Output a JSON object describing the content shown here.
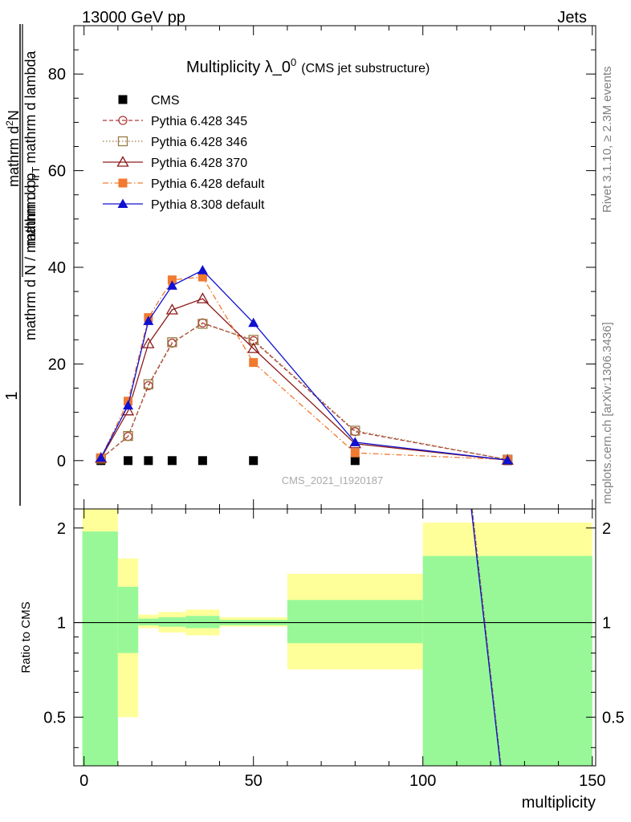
{
  "header": {
    "energy_label": "13000 GeV pp",
    "process_label": "Jets"
  },
  "side_labels": {
    "rivet": "Rivet 3.1.10, ≥ 2.3M events",
    "mcplots": "mcplots.cern.ch [arXiv:1306.3436]"
  },
  "chart_data": {
    "type": "line",
    "title_main": "Multiplicity λ_0",
    "title_sup": "0",
    "title_sub": "(CMS jet substructure)",
    "watermark": "CMS_2021_I1920187",
    "ylabel": {
      "numerator_1": "1",
      "denominator_1": "mathrm d N / mathrm d p",
      "denominator_1_sub": "T",
      "numerator_2": "mathrm d",
      "numerator_2_sup": "2",
      "numerator_2_tail": "N",
      "denominator_2": "mathrm d p",
      "denominator_2_sub": "T",
      "denominator_2_tail": "mathrm d lambda"
    },
    "xlabel": "multiplicity",
    "ratio_ylabel": "Ratio to CMS",
    "xlim": [
      -3,
      151
    ],
    "ylim": [
      -10,
      90
    ],
    "ratio_ylim": [
      0.35,
      2.3
    ],
    "x_ticks": [
      "0",
      "50",
      "100",
      "150"
    ],
    "x_tick_values": [
      0,
      50,
      100,
      150
    ],
    "y_ticks": [
      "0",
      "20",
      "40",
      "60",
      "80"
    ],
    "y_tick_values": [
      0,
      20,
      40,
      60,
      80
    ],
    "ratio_ticks": [
      "0.5",
      "1",
      "2"
    ],
    "ratio_tick_values": [
      0.5,
      1,
      2
    ],
    "x": [
      5,
      13,
      19,
      26,
      35,
      50,
      80,
      125
    ],
    "series": [
      {
        "name": "CMS",
        "values": [
          0,
          0,
          0,
          0,
          0,
          0,
          0,
          0
        ],
        "color": "#000000",
        "marker": "square-filled",
        "dash": "none"
      },
      {
        "name": "Pythia 6.428 345",
        "values": [
          0.4,
          5.0,
          15.5,
          24.3,
          28.5,
          24.8,
          6.0,
          0.2
        ],
        "color": "#b03a3a",
        "marker": "circle-open",
        "dash": "5,3"
      },
      {
        "name": "Pythia 6.428 346",
        "values": [
          0.4,
          5.1,
          15.8,
          24.5,
          28.3,
          25.0,
          6.2,
          0.2
        ],
        "color": "#9a7a40",
        "marker": "square-open",
        "dash": "1.5,2.5"
      },
      {
        "name": "Pythia 6.428 370",
        "values": [
          0.5,
          10.3,
          24.2,
          31.2,
          33.5,
          23.2,
          3.5,
          0.1
        ],
        "color": "#8b1a1a",
        "marker": "triangle-open",
        "dash": "none"
      },
      {
        "name": "Pythia 6.428 default",
        "values": [
          0.6,
          12.3,
          29.6,
          37.4,
          38.0,
          20.3,
          1.6,
          0.2
        ],
        "color": "#f07a30",
        "marker": "square-filled",
        "dash": "7,3,1.5,3"
      },
      {
        "name": "Pythia 8.308 default",
        "values": [
          0.6,
          11.4,
          28.9,
          36.2,
          39.4,
          28.5,
          3.8,
          0.1
        ],
        "color": "#1010d0",
        "marker": "triangle-filled",
        "dash": "none"
      }
    ],
    "ratio_bands": [
      {
        "x0": -0.5,
        "x1": 10,
        "green": [
          0.35,
          1.95
        ],
        "yellow": [
          0.35,
          2.3
        ]
      },
      {
        "x0": 10,
        "x1": 16,
        "green": [
          0.8,
          1.3
        ],
        "yellow": [
          0.5,
          1.6
        ]
      },
      {
        "x0": 16,
        "x1": 22,
        "green": [
          0.98,
          1.03
        ],
        "yellow": [
          0.96,
          1.06
        ]
      },
      {
        "x0": 22,
        "x1": 30,
        "green": [
          0.97,
          1.04
        ],
        "yellow": [
          0.93,
          1.08
        ]
      },
      {
        "x0": 30,
        "x1": 40,
        "green": [
          0.96,
          1.05
        ],
        "yellow": [
          0.91,
          1.1
        ]
      },
      {
        "x0": 40,
        "x1": 60,
        "green": [
          0.98,
          1.02
        ],
        "yellow": [
          0.97,
          1.04
        ]
      },
      {
        "x0": 60,
        "x1": 100,
        "green": [
          0.86,
          1.18
        ],
        "yellow": [
          0.71,
          1.43
        ]
      },
      {
        "x0": 100,
        "x1": 150,
        "green": [
          0.35,
          1.63
        ],
        "yellow": [
          0.35,
          2.08
        ]
      }
    ],
    "ratio_line_value": 1,
    "ratio_curves": [
      {
        "series": "Pythia 6.428 345",
        "points": [
          [
            114.5,
            2.3
          ],
          [
            123,
            0.35
          ]
        ]
      },
      {
        "series": "Pythia 6.428 346",
        "points": [
          [
            114.6,
            2.3
          ],
          [
            123.1,
            0.35
          ]
        ]
      },
      {
        "series": "Pythia 8.308 default",
        "points": [
          [
            114.3,
            2.3
          ],
          [
            122.9,
            0.35
          ]
        ]
      }
    ],
    "grid": false,
    "legend_position": "top-left",
    "colors": {
      "band_green": "#98f898",
      "band_yellow": "#ffff9a"
    }
  }
}
